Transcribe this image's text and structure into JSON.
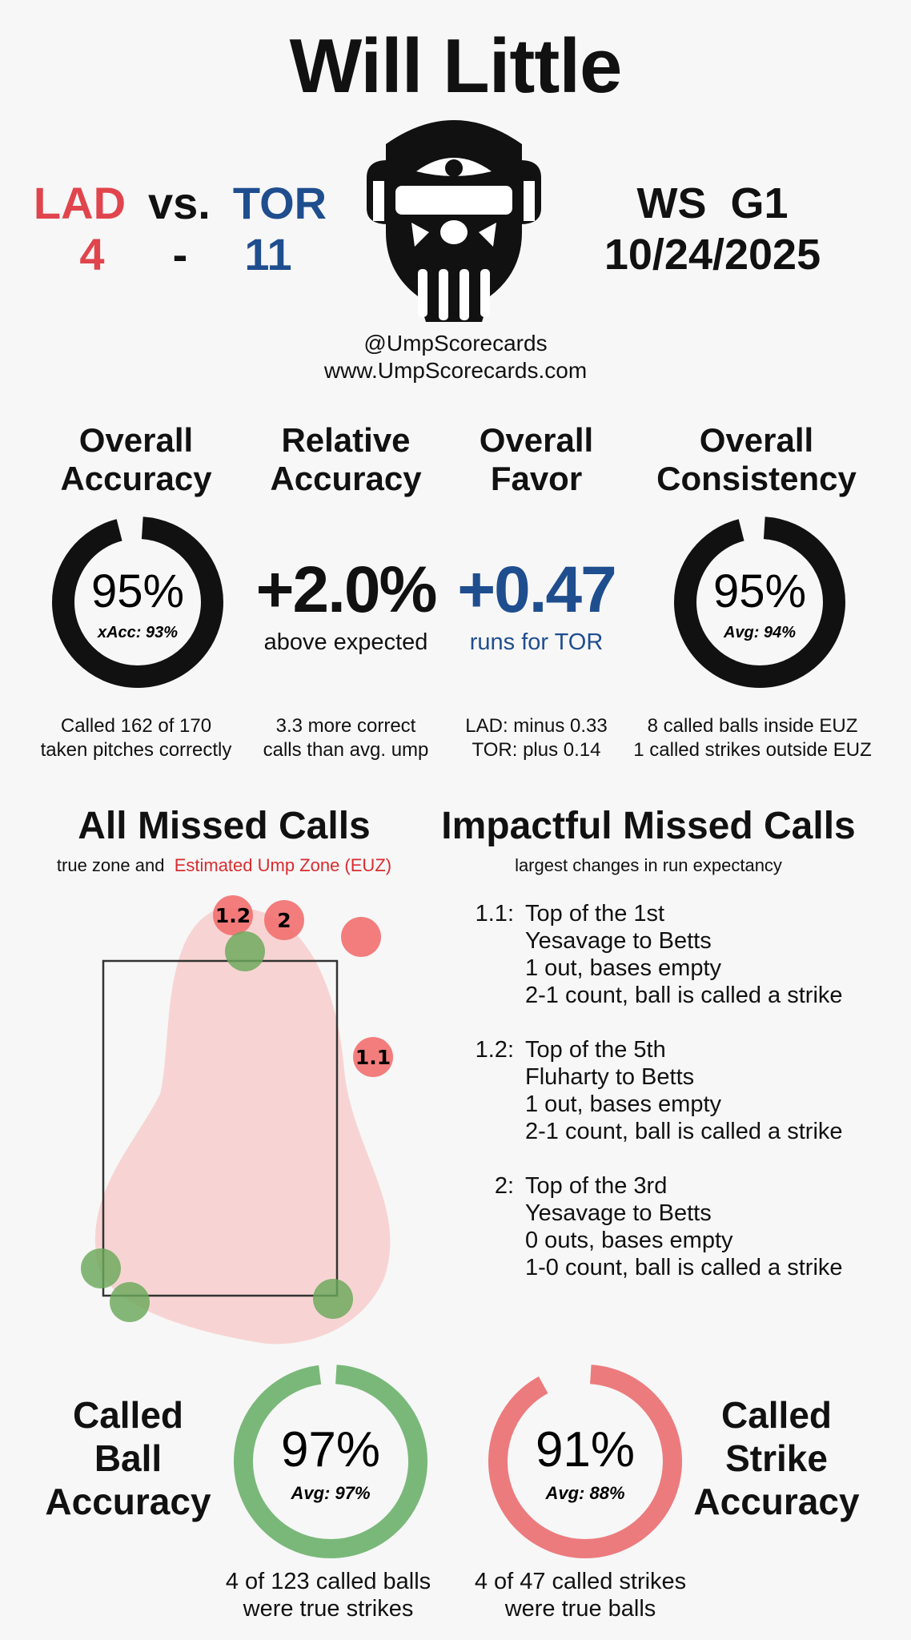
{
  "title": "Will Little",
  "teams": {
    "away": "LAD",
    "vs": "vs.",
    "home": "TOR",
    "away_score": "4",
    "dash": "-",
    "home_score": "11"
  },
  "colors": {
    "away": "#e0454d",
    "home": "#1f4e8f",
    "ball_green": "#7ab87a",
    "strike_red": "#ec7b7e",
    "euz_fill": "#f7d4d3",
    "euz_label": "#d92b2f"
  },
  "game": {
    "label": "WS  G1",
    "date": "10/24/2025"
  },
  "social": {
    "handle": "@UmpScorecards",
    "site": "www.UmpScorecards.com"
  },
  "logo_icon": "umpire-mask-icon",
  "stats": [
    {
      "title1": "Overall",
      "title2": "Accuracy",
      "value": "95%",
      "caption": "xAcc: 93%",
      "pct": 95,
      "desc1": "Called 162 of 170",
      "desc2": "taken pitches correctly"
    },
    {
      "title1": "Relative",
      "title2": "Accuracy",
      "value": "+2.0%",
      "caption": "above expected",
      "desc1": "3.3 more correct",
      "desc2": "calls than avg. ump"
    },
    {
      "title1": "Overall",
      "title2": "Favor",
      "value": "+0.47",
      "caption": "runs for TOR",
      "desc1": "LAD: minus 0.33",
      "desc2": "TOR: plus 0.14"
    },
    {
      "title1": "Overall",
      "title2": "Consistency",
      "value": "95%",
      "caption": "Avg: 94%",
      "pct": 95,
      "desc1": "8 called balls inside EUZ",
      "desc2": "1 called strikes outside EUZ"
    }
  ],
  "missed": {
    "title": "All Missed Calls",
    "sub_prefix": "true zone and",
    "sub_highlight": "Estimated Ump Zone (EUZ)",
    "labels": [
      "1.2",
      "2",
      "1.1"
    ]
  },
  "impact": {
    "title": "Impactful Missed Calls",
    "sub": "largest changes in run expectancy",
    "items": [
      {
        "num": "1.1:",
        "lines": [
          "Top of the 1st",
          "Yesavage to Betts",
          "1 out, bases empty",
          "2-1 count, ball is called a strike"
        ]
      },
      {
        "num": "1.2:",
        "lines": [
          "Top of the 5th",
          "Fluharty to Betts",
          "1 out, bases empty",
          "2-1 count, ball is called a strike"
        ]
      },
      {
        "num": "2:",
        "lines": [
          "Top of the 3rd",
          "Yesavage to Betts",
          "0 outs, bases empty",
          "1-0 count, ball is called a strike"
        ]
      }
    ]
  },
  "ball_acc": {
    "t1": "Called",
    "t2": "Ball",
    "t3": "Accuracy",
    "value": "97%",
    "avg": "Avg: 97%",
    "pct": 97,
    "d1": "4 of 123 called balls",
    "d2": "were true strikes"
  },
  "strike_acc": {
    "t1": "Called",
    "t2": "Strike",
    "t3": "Accuracy",
    "value": "91%",
    "avg": "Avg: 88%",
    "pct": 91,
    "d1": "4 of 47 called strikes",
    "d2": "were true balls"
  }
}
